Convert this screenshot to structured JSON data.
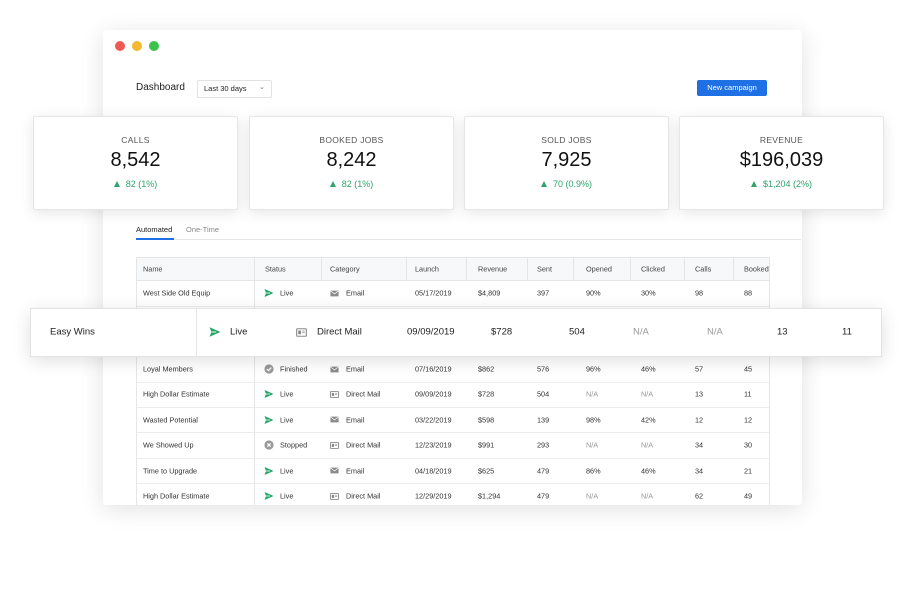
{
  "window": {
    "title": "Dashboard",
    "range": "Last 30 days",
    "button": "New campaign"
  },
  "stats": [
    {
      "label": "CALLS",
      "value": "8,542",
      "delta": "82 (1%)"
    },
    {
      "label": "BOOKED JOBS",
      "value": "8,242",
      "delta": "82 (1%)"
    },
    {
      "label": "SOLD JOBS",
      "value": "7,925",
      "delta": "70 (0.9%)"
    },
    {
      "label": "REVENUE",
      "value": "$196,039",
      "delta": "$1,204 (2%)"
    }
  ],
  "tabs": [
    "Automated",
    "One-Time"
  ],
  "table": {
    "columns": [
      "Name",
      "Status",
      "Category",
      "Launch",
      "Revenue",
      "Sent",
      "Opened",
      "Clicked",
      "Calls",
      "Booked"
    ],
    "rows": [
      {
        "cells": [
          "West Side Old Equip",
          "Live",
          "Email",
          "05/17/2019",
          "$4,809",
          "397",
          "90%",
          "30%",
          "98",
          "88"
        ],
        "status_icon": "plane",
        "category_icon": "email"
      },
      {
        "cells": [
          "Loyal Members",
          "Finished",
          "Email",
          "07/16/2019",
          "$862",
          "576",
          "96%",
          "46%",
          "57",
          "45"
        ],
        "status_icon": "check",
        "category_icon": "email"
      },
      {
        "cells": [
          "High Dollar Estimate",
          "Live",
          "Direct Mail",
          "09/09/2019",
          "$728",
          "504",
          "N/A",
          "N/A",
          "13",
          "11"
        ],
        "status_icon": "plane",
        "category_icon": "mail"
      },
      {
        "cells": [
          "Wasted Potential",
          "Live",
          "Email",
          "03/22/2019",
          "$598",
          "139",
          "98%",
          "42%",
          "12",
          "12"
        ],
        "status_icon": "plane",
        "category_icon": "email"
      },
      {
        "cells": [
          "We Showed Up",
          "Stopped",
          "Direct Mail",
          "12/23/2019",
          "$991",
          "293",
          "N/A",
          "N/A",
          "34",
          "30"
        ],
        "status_icon": "cross",
        "category_icon": "mail"
      },
      {
        "cells": [
          "Time to Upgrade",
          "Live",
          "Email",
          "04/18/2019",
          "$625",
          "479",
          "86%",
          "46%",
          "34",
          "21"
        ],
        "status_icon": "plane",
        "category_icon": "email"
      },
      {
        "cells": [
          "High Dollar Estimate",
          "Live",
          "Direct Mail",
          "12/29/2019",
          "$1,294",
          "479",
          "N/A",
          "N/A",
          "62",
          "49"
        ],
        "status_icon": "plane",
        "category_icon": "mail"
      }
    ]
  },
  "highlight": {
    "cells": [
      "Easy Wins",
      "Live",
      "Direct Mail",
      "09/09/2019",
      "$728",
      "504",
      "N/A",
      "N/A",
      "13",
      "11"
    ],
    "status_icon": "plane",
    "category_icon": "mail"
  }
}
